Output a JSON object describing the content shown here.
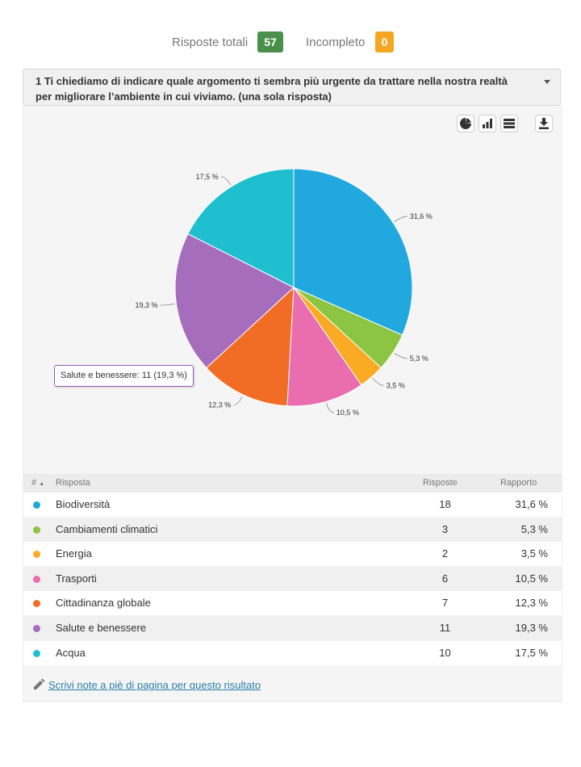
{
  "summary": {
    "total_label": "Risposte totali",
    "total_value": "57",
    "total_color": "#4a8f4a",
    "incomplete_label": "Incompleto",
    "incomplete_value": "0",
    "incomplete_color": "#f5a623"
  },
  "question": {
    "text": "1 Ti chiediamo di indicare quale argomento ti sembra più urgente da trattare nella nostra realtà per migliorare l’ambiente in cui viviamo. (una sola risposta)"
  },
  "toolbar": {
    "icons": [
      "pie-chart-icon",
      "bar-chart-icon",
      "table-icon",
      "download-icon"
    ]
  },
  "chart_data": {
    "type": "pie",
    "categories": [
      "Biodiversità",
      "Cambiamenti climatici",
      "Energia",
      "Trasporti",
      "Cittadinanza globale",
      "Salute e benessere",
      "Acqua"
    ],
    "values": [
      18,
      3,
      2,
      6,
      7,
      11,
      10
    ],
    "percent_labels": [
      "31,6 %",
      "5,3 %",
      "3,5 %",
      "10,5 %",
      "12,3 %",
      "19,3 %",
      "17,5 %"
    ],
    "colors": [
      "#21a8df",
      "#8bc541",
      "#fbaa24",
      "#e96daf",
      "#f16c24",
      "#a66dbc",
      "#1fbfcf"
    ],
    "tooltip": "Salute e benessere: 11 (19,3 %)"
  },
  "table": {
    "headers": {
      "num": "#",
      "answer": "Risposta",
      "count": "Risposte",
      "ratio": "Rapporto"
    },
    "rows": [
      {
        "label": "Biodiversità",
        "count": "18",
        "pct": "31,6 %",
        "color": "#21a8df"
      },
      {
        "label": "Cambiamenti climatici",
        "count": "3",
        "pct": "5,3 %",
        "color": "#8bc541"
      },
      {
        "label": "Energia",
        "count": "2",
        "pct": "3,5 %",
        "color": "#fbaa24"
      },
      {
        "label": "Trasporti",
        "count": "6",
        "pct": "10,5 %",
        "color": "#e96daf"
      },
      {
        "label": "Cittadinanza globale",
        "count": "7",
        "pct": "12,3 %",
        "color": "#f16c24"
      },
      {
        "label": "Salute e benessere",
        "count": "11",
        "pct": "19,3 %",
        "color": "#a66dbc"
      },
      {
        "label": "Acqua",
        "count": "10",
        "pct": "17,5 %",
        "color": "#1fbfcf"
      }
    ]
  },
  "footer": {
    "note_link": "Scrivi note a piè di pagina per questo risultato"
  }
}
